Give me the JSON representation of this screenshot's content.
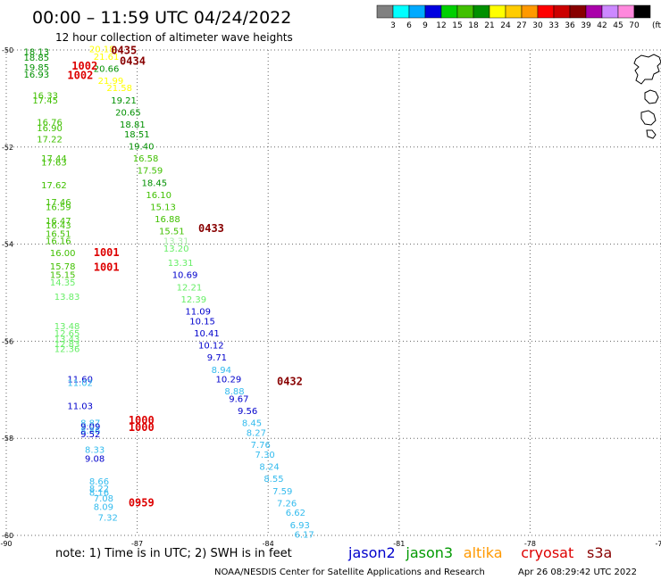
{
  "header": {
    "title": "00:00 – 11:59 UTC 04/24/2022",
    "subtitle": "12 hour collection of altimeter wave heights"
  },
  "legend": {
    "unit": "(ft)",
    "colors": [
      "#808080",
      "#00ffff",
      "#00aaff",
      "#0000e0",
      "#00d000",
      "#40c000",
      "#009000",
      "#ffff00",
      "#ffcc00",
      "#ff9900",
      "#ff0000",
      "#cc0000",
      "#880000",
      "#aa00aa",
      "#cc88ff",
      "#ff88dd",
      "#000000"
    ],
    "labels": [
      "3",
      "6",
      "9",
      "12",
      "15",
      "18",
      "21",
      "24",
      "27",
      "30",
      "33",
      "36",
      "39",
      "42",
      "45",
      "70"
    ]
  },
  "footer": {
    "note": "note: 1) Time is in UTC; 2) SWH is in feet",
    "credit": "NOAA/NESDIS Center for Satellite Applications and Research",
    "generated": "Apr 26 08:29:42 UTC 2022",
    "satellites": [
      {
        "name": "jason2",
        "color": "#0000cc"
      },
      {
        "name": "jason3",
        "color": "#009900"
      },
      {
        "name": "altika",
        "color": "#ff9900"
      },
      {
        "name": "cryosat",
        "color": "#dd0000"
      },
      {
        "name": "s3a",
        "color": "#880000"
      }
    ]
  },
  "chart_data": {
    "type": "scatter",
    "title": "00:00 – 11:59 UTC 04/24/2022",
    "subtitle": "12 hour collection of altimeter wave heights",
    "xlim": [
      -90,
      -75
    ],
    "ylim": [
      -60,
      -50
    ],
    "x_ticks": [
      -90,
      -87,
      -84,
      -81,
      -78,
      -75
    ],
    "y_ticks": [
      -50,
      -52,
      -54,
      -56,
      -58,
      -60
    ],
    "grid": true,
    "unit": "ft",
    "tracks": [
      {
        "time": "1002",
        "color": "#dd0000",
        "lon": -88.5,
        "lat": -50.4
      },
      {
        "time": "1002",
        "color": "#dd0000",
        "lon": -88.6,
        "lat": -50.6
      },
      {
        "time": "1001",
        "color": "#dd0000",
        "lon": -88.0,
        "lat": -54.25
      },
      {
        "time": "1001",
        "color": "#dd0000",
        "lon": -88.0,
        "lat": -54.55
      },
      {
        "time": "1000",
        "color": "#dd0000",
        "lon": -87.2,
        "lat": -57.7
      },
      {
        "time": "1000",
        "color": "#dd0000",
        "lon": -87.2,
        "lat": -57.85
      },
      {
        "time": "0959",
        "color": "#dd0000",
        "lon": -87.2,
        "lat": -59.4
      },
      {
        "time": "0435",
        "color": "#880000",
        "lon": -87.6,
        "lat": -50.08
      },
      {
        "time": "0434",
        "color": "#880000",
        "lon": -87.4,
        "lat": -50.3
      },
      {
        "time": "0433",
        "color": "#880000",
        "lon": -85.6,
        "lat": -53.75
      },
      {
        "time": "0432",
        "color": "#880000",
        "lon": -83.8,
        "lat": -56.9
      }
    ],
    "points": [
      {
        "lon": -89.6,
        "lat": -50.1,
        "swh": "18.13",
        "color": "#009000"
      },
      {
        "lon": -89.6,
        "lat": -50.22,
        "swh": "18.85",
        "color": "#009000"
      },
      {
        "lon": -89.6,
        "lat": -50.42,
        "swh": "19.85",
        "color": "#009000"
      },
      {
        "lon": -89.6,
        "lat": -50.57,
        "swh": "16.93",
        "color": "#009000"
      },
      {
        "lon": -89.4,
        "lat": -51.0,
        "swh": "16.33",
        "color": "#40c000"
      },
      {
        "lon": -89.4,
        "lat": -51.1,
        "swh": "17.45",
        "color": "#40c000"
      },
      {
        "lon": -89.3,
        "lat": -51.55,
        "swh": "16.76",
        "color": "#40c000"
      },
      {
        "lon": -89.3,
        "lat": -51.67,
        "swh": "16.90",
        "color": "#40c000"
      },
      {
        "lon": -89.3,
        "lat": -51.9,
        "swh": "17.22",
        "color": "#40c000"
      },
      {
        "lon": -89.2,
        "lat": -52.3,
        "swh": "17.44",
        "color": "#40c000"
      },
      {
        "lon": -89.2,
        "lat": -52.38,
        "swh": "17.63",
        "color": "#40c000"
      },
      {
        "lon": -89.2,
        "lat": -52.85,
        "swh": "17.62",
        "color": "#40c000"
      },
      {
        "lon": -89.1,
        "lat": -53.2,
        "swh": "17.46",
        "color": "#40c000"
      },
      {
        "lon": -89.1,
        "lat": -53.3,
        "swh": "16.59",
        "color": "#40c000"
      },
      {
        "lon": -89.1,
        "lat": -53.58,
        "swh": "16.47",
        "color": "#40c000"
      },
      {
        "lon": -89.1,
        "lat": -53.68,
        "swh": "16.43",
        "color": "#40c000"
      },
      {
        "lon": -89.1,
        "lat": -53.85,
        "swh": "16.51",
        "color": "#40c000"
      },
      {
        "lon": -89.1,
        "lat": -54.0,
        "swh": "16.16",
        "color": "#40c000"
      },
      {
        "lon": -89.0,
        "lat": -54.25,
        "swh": "16.00",
        "color": "#40c000"
      },
      {
        "lon": -89.0,
        "lat": -54.52,
        "swh": "15.78",
        "color": "#40c000"
      },
      {
        "lon": -89.0,
        "lat": -54.7,
        "swh": "15.15",
        "color": "#40c000"
      },
      {
        "lon": -89.0,
        "lat": -54.85,
        "swh": "14.35",
        "color": "#66ee66"
      },
      {
        "lon": -88.9,
        "lat": -55.15,
        "swh": "13.83",
        "color": "#66ee66"
      },
      {
        "lon": -88.9,
        "lat": -55.75,
        "swh": "13.48",
        "color": "#66ee66"
      },
      {
        "lon": -88.9,
        "lat": -55.9,
        "swh": "12.65",
        "color": "#66ee66"
      },
      {
        "lon": -88.9,
        "lat": -56.02,
        "swh": "13.43",
        "color": "#66ee66"
      },
      {
        "lon": -88.9,
        "lat": -56.12,
        "swh": "12.83",
        "color": "#66ee66"
      },
      {
        "lon": -88.9,
        "lat": -56.22,
        "swh": "12.36",
        "color": "#66ee66"
      },
      {
        "lon": -88.6,
        "lat": -56.85,
        "swh": "11.60",
        "color": "#0000cc"
      },
      {
        "lon": -88.6,
        "lat": -56.92,
        "swh": "11.02",
        "color": "#33bbee"
      },
      {
        "lon": -88.6,
        "lat": -57.4,
        "swh": "11.03",
        "color": "#0000cc"
      },
      {
        "lon": -88.3,
        "lat": -57.75,
        "swh": "8.87",
        "color": "#33bbee"
      },
      {
        "lon": -88.3,
        "lat": -57.82,
        "swh": "9.09",
        "color": "#0000cc"
      },
      {
        "lon": -88.3,
        "lat": -57.9,
        "swh": "8.86",
        "color": "#33bbee"
      },
      {
        "lon": -88.3,
        "lat": -57.98,
        "swh": "9.52",
        "color": "#0000cc"
      },
      {
        "lon": -88.2,
        "lat": -58.3,
        "swh": "8.33",
        "color": "#33bbee"
      },
      {
        "lon": -88.2,
        "lat": -58.48,
        "swh": "9.08",
        "color": "#0000cc"
      },
      {
        "lon": -88.1,
        "lat": -58.95,
        "swh": "8.66",
        "color": "#33bbee"
      },
      {
        "lon": -88.1,
        "lat": -59.1,
        "swh": "8.22",
        "color": "#33bbee"
      },
      {
        "lon": -88.1,
        "lat": -59.18,
        "swh": "8.16",
        "color": "#33bbee"
      },
      {
        "lon": -88.0,
        "lat": -59.3,
        "swh": "7.08",
        "color": "#33bbee"
      },
      {
        "lon": -88.0,
        "lat": -59.48,
        "swh": "8.09",
        "color": "#33bbee"
      },
      {
        "lon": -87.9,
        "lat": -59.7,
        "swh": "7.32",
        "color": "#33bbee"
      },
      {
        "lon": -88.1,
        "lat": -50.05,
        "swh": "20.18",
        "color": "#ffff00"
      },
      {
        "lon": -88.0,
        "lat": -50.2,
        "swh": "21.61",
        "color": "#ffff00"
      },
      {
        "lon": -88.0,
        "lat": -50.45,
        "swh": "20.66",
        "color": "#009000"
      },
      {
        "lon": -87.9,
        "lat": -50.7,
        "swh": "21.99",
        "color": "#ffff00"
      },
      {
        "lon": -87.7,
        "lat": -50.85,
        "swh": "21.58",
        "color": "#ffff00"
      },
      {
        "lon": -87.6,
        "lat": -51.1,
        "swh": "19.21",
        "color": "#009000"
      },
      {
        "lon": -87.5,
        "lat": -51.35,
        "swh": "20.65",
        "color": "#009000"
      },
      {
        "lon": -87.4,
        "lat": -51.6,
        "swh": "18.81",
        "color": "#009000"
      },
      {
        "lon": -87.3,
        "lat": -51.8,
        "swh": "18.51",
        "color": "#009000"
      },
      {
        "lon": -87.2,
        "lat": -52.05,
        "swh": "19.40",
        "color": "#009000"
      },
      {
        "lon": -87.1,
        "lat": -52.3,
        "swh": "16.58",
        "color": "#40c000"
      },
      {
        "lon": -87.0,
        "lat": -52.55,
        "swh": "17.59",
        "color": "#40c000"
      },
      {
        "lon": -86.9,
        "lat": -52.8,
        "swh": "18.45",
        "color": "#009000"
      },
      {
        "lon": -86.8,
        "lat": -53.05,
        "swh": "16.10",
        "color": "#40c000"
      },
      {
        "lon": -86.7,
        "lat": -53.3,
        "swh": "15.13",
        "color": "#40c000"
      },
      {
        "lon": -86.6,
        "lat": -53.55,
        "swh": "16.88",
        "color": "#40c000"
      },
      {
        "lon": -86.5,
        "lat": -53.8,
        "swh": "15.51",
        "color": "#40c000"
      },
      {
        "lon": -86.4,
        "lat": -54.0,
        "swh": "13.31",
        "color": "#aaeeaa"
      },
      {
        "lon": -86.4,
        "lat": -54.15,
        "swh": "13.20",
        "color": "#66ee66"
      },
      {
        "lon": -86.3,
        "lat": -54.45,
        "swh": "13.31",
        "color": "#66ee66"
      },
      {
        "lon": -86.2,
        "lat": -54.7,
        "swh": "10.69",
        "color": "#0000cc"
      },
      {
        "lon": -86.1,
        "lat": -54.95,
        "swh": "12.21",
        "color": "#66ee66"
      },
      {
        "lon": -86.0,
        "lat": -55.2,
        "swh": "12.39",
        "color": "#66ee66"
      },
      {
        "lon": -85.9,
        "lat": -55.45,
        "swh": "11.09",
        "color": "#0000cc"
      },
      {
        "lon": -85.8,
        "lat": -55.65,
        "swh": "10.15",
        "color": "#0000cc"
      },
      {
        "lon": -85.7,
        "lat": -55.9,
        "swh": "10.41",
        "color": "#0000cc"
      },
      {
        "lon": -85.6,
        "lat": -56.15,
        "swh": "10.12",
        "color": "#0000cc"
      },
      {
        "lon": -85.4,
        "lat": -56.4,
        "swh": "9.71",
        "color": "#0000cc"
      },
      {
        "lon": -85.3,
        "lat": -56.65,
        "swh": "8.94",
        "color": "#33bbee"
      },
      {
        "lon": -85.2,
        "lat": -56.85,
        "swh": "10.29",
        "color": "#0000cc"
      },
      {
        "lon": -85.0,
        "lat": -57.1,
        "swh": "8.88",
        "color": "#33bbee"
      },
      {
        "lon": -84.9,
        "lat": -57.25,
        "swh": "9.67",
        "color": "#0000cc"
      },
      {
        "lon": -84.7,
        "lat": -57.5,
        "swh": "9.56",
        "color": "#0000cc"
      },
      {
        "lon": -84.6,
        "lat": -57.75,
        "swh": "8.45",
        "color": "#33bbee"
      },
      {
        "lon": -84.5,
        "lat": -57.95,
        "swh": "8.27",
        "color": "#33bbee"
      },
      {
        "lon": -84.4,
        "lat": -58.2,
        "swh": "7.76",
        "color": "#33bbee"
      },
      {
        "lon": -84.3,
        "lat": -58.4,
        "swh": "7.30",
        "color": "#33bbee"
      },
      {
        "lon": -84.2,
        "lat": -58.65,
        "swh": "8.24",
        "color": "#33bbee"
      },
      {
        "lon": -84.1,
        "lat": -58.9,
        "swh": "8.55",
        "color": "#33bbee"
      },
      {
        "lon": -83.9,
        "lat": -59.15,
        "swh": "7.59",
        "color": "#33bbee"
      },
      {
        "lon": -83.8,
        "lat": -59.4,
        "swh": "7.26",
        "color": "#33bbee"
      },
      {
        "lon": -83.6,
        "lat": -59.6,
        "swh": "6.62",
        "color": "#33bbee"
      },
      {
        "lon": -83.5,
        "lat": -59.85,
        "swh": "6.93",
        "color": "#33bbee"
      },
      {
        "lon": -83.4,
        "lat": -60.05,
        "swh": "6.17",
        "color": "#33bbee"
      }
    ]
  }
}
